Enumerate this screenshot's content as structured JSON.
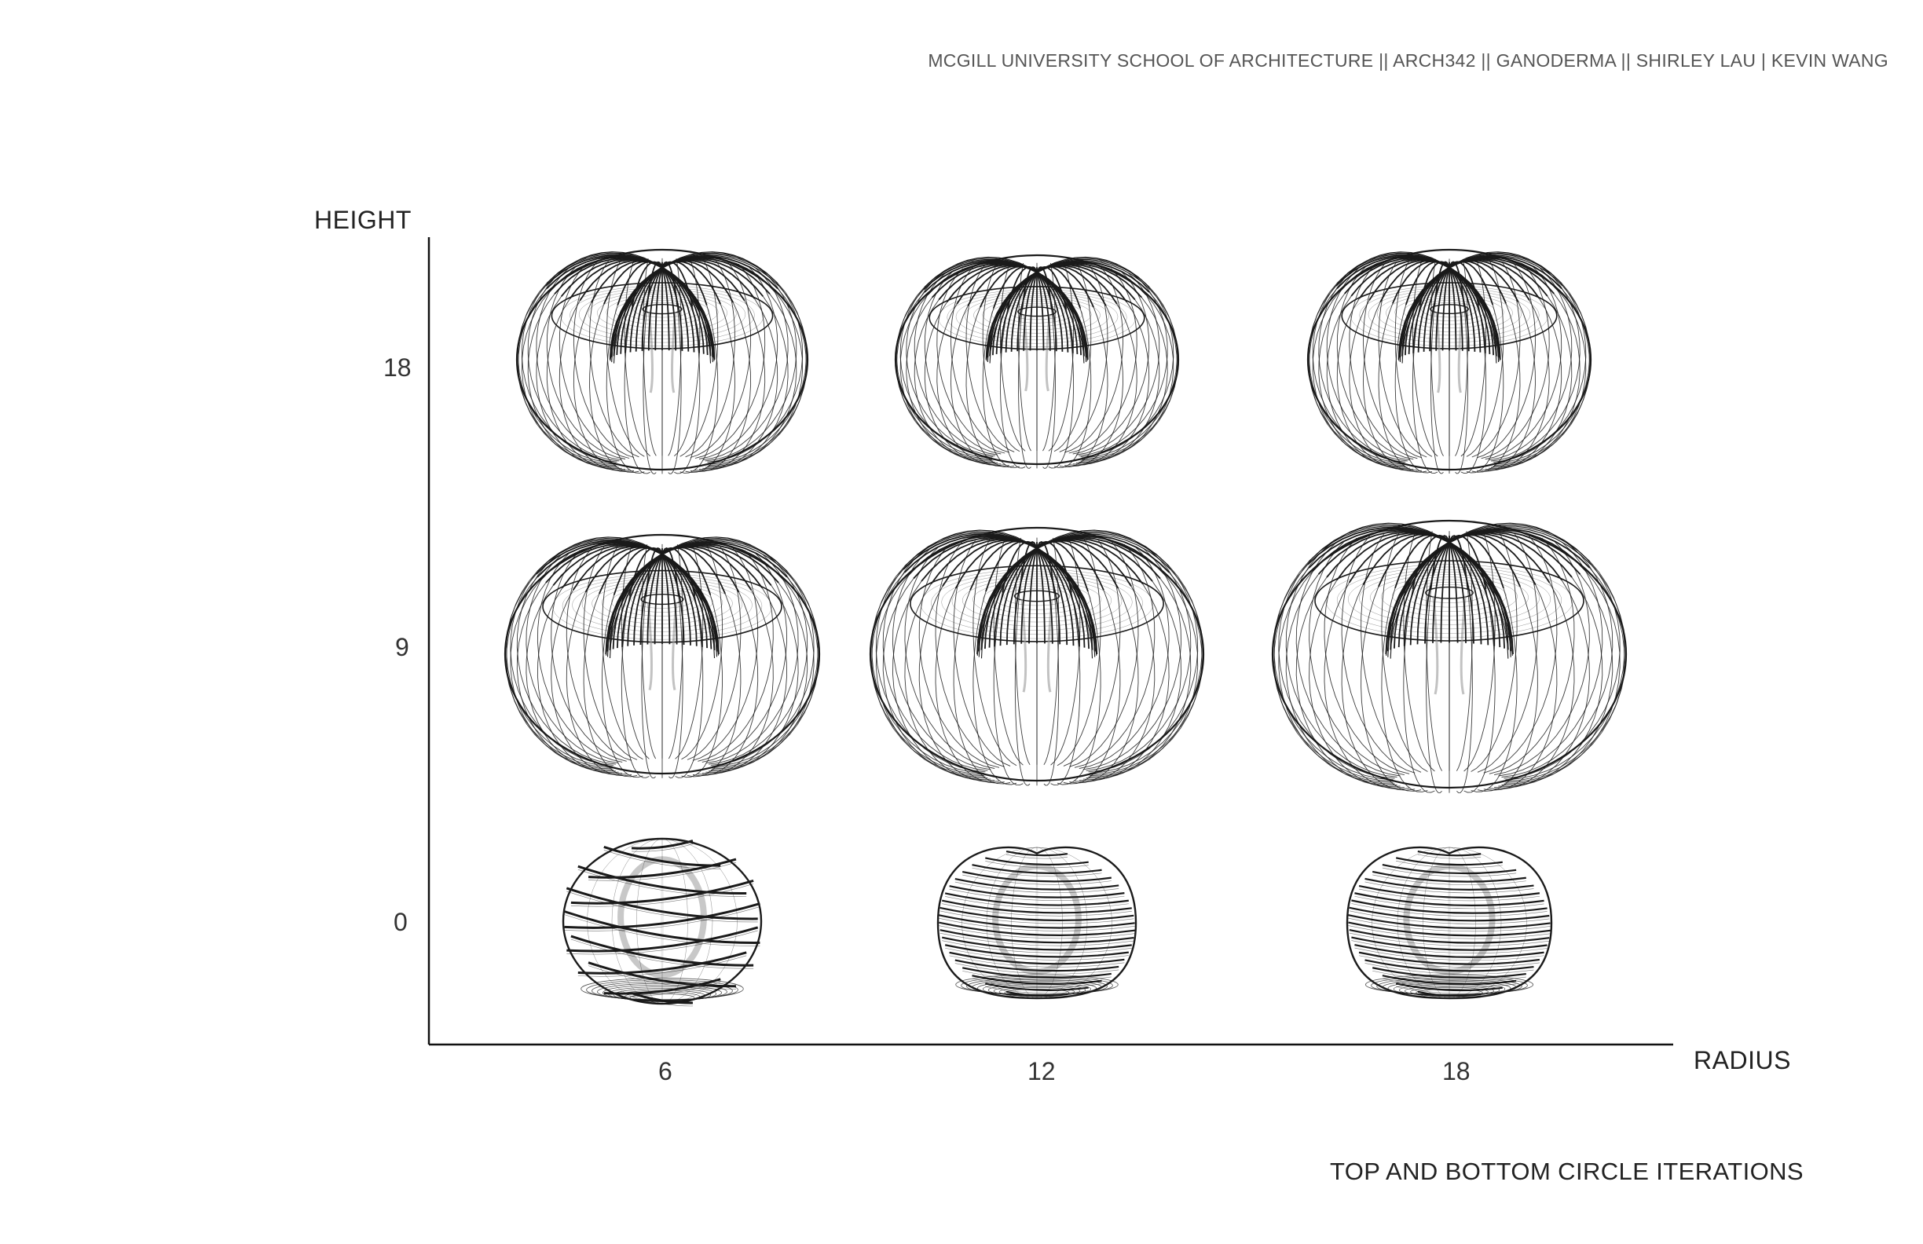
{
  "header": {
    "text": "MCGILL UNIVERSITY SCHOOL OF ARCHITECTURE ||  ARCH342 || GANODERMA || SHIRLEY LAU | KEVIN WANG"
  },
  "footer": {
    "title": "TOP AND BOTTOM CIRCLE ITERATIONS"
  },
  "axes": {
    "y_title": "HEIGHT",
    "x_title": "RADIUS",
    "y_ticks": [
      "18",
      "9",
      "0"
    ],
    "x_ticks": [
      "6",
      "12",
      "18"
    ]
  },
  "colors": {
    "line": "#1a1a1a",
    "inner": "#9a9a9a",
    "axis": "#111111"
  },
  "forms": [
    {
      "height": 18,
      "radius": 6,
      "shape": "torus"
    },
    {
      "height": 18,
      "radius": 12,
      "shape": "torus"
    },
    {
      "height": 18,
      "radius": 18,
      "shape": "torus"
    },
    {
      "height": 9,
      "radius": 6,
      "shape": "torus"
    },
    {
      "height": 9,
      "radius": 12,
      "shape": "torus"
    },
    {
      "height": 9,
      "radius": 18,
      "shape": "torus"
    },
    {
      "height": 0,
      "radius": 6,
      "shape": "banded-sphere"
    },
    {
      "height": 0,
      "radius": 12,
      "shape": "banded-sphere"
    },
    {
      "height": 0,
      "radius": 18,
      "shape": "banded-sphere"
    }
  ]
}
